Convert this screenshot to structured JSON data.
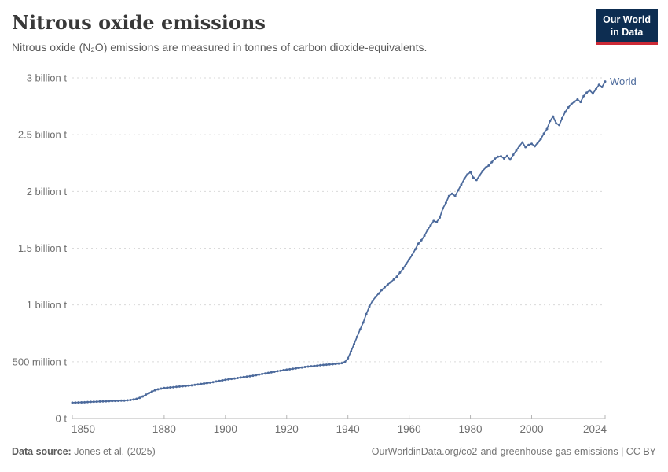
{
  "header": {
    "title": "Nitrous oxide emissions",
    "subtitle": "Nitrous oxide (N₂O) emissions are measured in tonnes of carbon dioxide-equivalents.",
    "logo": {
      "line1": "Our World",
      "line2": "in Data",
      "bg_color": "#0d2d51",
      "accent_color": "#cc2a36"
    }
  },
  "footer": {
    "source_label": "Data source:",
    "source_value": "Jones et al. (2025)",
    "attribution": "OurWorldinData.org/co2-and-greenhouse-gas-emissions | CC BY"
  },
  "chart_data": {
    "type": "line",
    "title": "Nitrous oxide emissions",
    "xlabel": "",
    "ylabel": "",
    "unit": "tonnes of CO2-equivalents",
    "x_range": [
      1850,
      2024
    ],
    "y_range_billion_t": [
      0,
      3
    ],
    "grid": "dashed-horizontal",
    "legend_position": "end-of-line-label",
    "x_ticks": [
      1850,
      1880,
      1900,
      1920,
      1940,
      1960,
      1980,
      2000,
      2024
    ],
    "y_ticks": [
      {
        "value": 0,
        "label": "0 t"
      },
      {
        "value": 0.5,
        "label": "500 million t"
      },
      {
        "value": 1,
        "label": "1 billion t"
      },
      {
        "value": 1.5,
        "label": "1.5 billion t"
      },
      {
        "value": 2,
        "label": "2 billion t"
      },
      {
        "value": 2.5,
        "label": "2.5 billion t"
      },
      {
        "value": 3,
        "label": "3 billion t"
      }
    ],
    "series": [
      {
        "name": "World",
        "color": "#4C6A9C",
        "start_year": 1850,
        "end_year": 2024,
        "values_billion_t": [
          0.139,
          0.14,
          0.141,
          0.142,
          0.143,
          0.145,
          0.146,
          0.147,
          0.148,
          0.15,
          0.151,
          0.152,
          0.153,
          0.154,
          0.155,
          0.156,
          0.157,
          0.158,
          0.16,
          0.163,
          0.167,
          0.173,
          0.182,
          0.194,
          0.209,
          0.224,
          0.237,
          0.249,
          0.257,
          0.263,
          0.268,
          0.271,
          0.274,
          0.276,
          0.279,
          0.281,
          0.284,
          0.286,
          0.289,
          0.292,
          0.296,
          0.3,
          0.304,
          0.308,
          0.312,
          0.316,
          0.321,
          0.326,
          0.331,
          0.336,
          0.341,
          0.345,
          0.349,
          0.353,
          0.357,
          0.361,
          0.365,
          0.369,
          0.373,
          0.377,
          0.382,
          0.387,
          0.392,
          0.397,
          0.402,
          0.407,
          0.412,
          0.417,
          0.421,
          0.426,
          0.43,
          0.434,
          0.438,
          0.442,
          0.446,
          0.45,
          0.454,
          0.457,
          0.46,
          0.463,
          0.466,
          0.469,
          0.472,
          0.474,
          0.476,
          0.478,
          0.481,
          0.484,
          0.488,
          0.497,
          0.53,
          0.59,
          0.655,
          0.72,
          0.785,
          0.845,
          0.92,
          0.985,
          1.035,
          1.07,
          1.1,
          1.13,
          1.155,
          1.18,
          1.2,
          1.225,
          1.25,
          1.285,
          1.32,
          1.36,
          1.4,
          1.44,
          1.49,
          1.54,
          1.57,
          1.61,
          1.66,
          1.7,
          1.74,
          1.73,
          1.77,
          1.85,
          1.9,
          1.96,
          1.98,
          1.96,
          2.01,
          2.06,
          2.11,
          2.15,
          2.17,
          2.12,
          2.1,
          2.14,
          2.18,
          2.21,
          2.228,
          2.258,
          2.288,
          2.305,
          2.31,
          2.29,
          2.312,
          2.28,
          2.323,
          2.36,
          2.4,
          2.432,
          2.39,
          2.41,
          2.42,
          2.398,
          2.43,
          2.462,
          2.51,
          2.55,
          2.62,
          2.66,
          2.6,
          2.585,
          2.645,
          2.7,
          2.74,
          2.77,
          2.79,
          2.81,
          2.788,
          2.84,
          2.87,
          2.89,
          2.862,
          2.9,
          2.94,
          2.92,
          2.968
        ]
      }
    ],
    "style": {
      "grid_color": "#dadada",
      "axis_color": "#b5b5b5",
      "tick_label_color": "#6e6e6e"
    }
  }
}
